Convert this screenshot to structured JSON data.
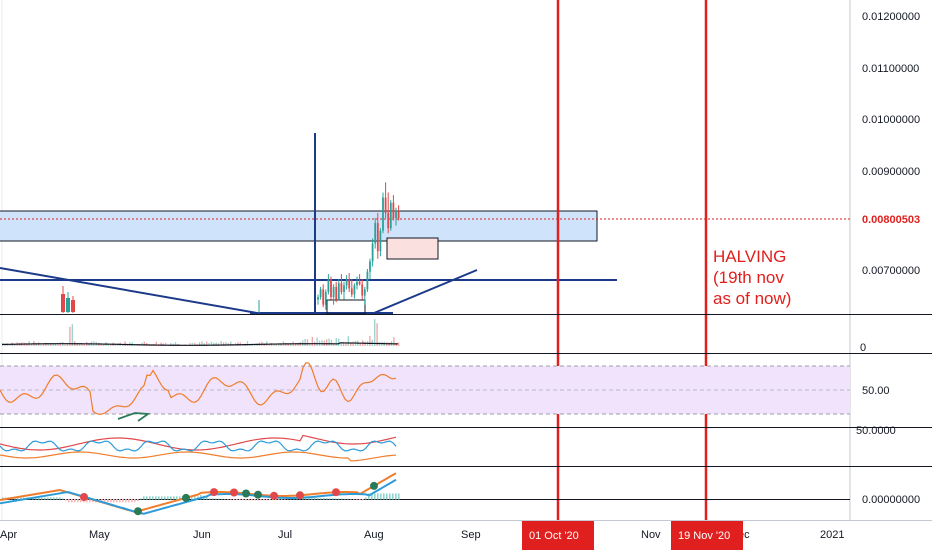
{
  "chart_data": {
    "type": "candlestick",
    "price_axis": {
      "ticks": [
        "0.01200000",
        "0.01100000",
        "0.01000000",
        "0.00900000",
        "0.00800503",
        "0.00700000"
      ],
      "range": [
        0.0059,
        0.0126
      ],
      "current_price": "0.00800503"
    },
    "time_axis": {
      "ticks": [
        "Apr",
        "May",
        "Jun",
        "Jul",
        "Aug",
        "Sep",
        "Nov",
        "ec",
        "2021"
      ],
      "markers": [
        "01 Oct '20",
        "19 Nov '20"
      ]
    },
    "annotation": {
      "lines": [
        "HALVING",
        "(19th nov",
        "as of now)"
      ]
    },
    "panes": [
      {
        "name": "volume",
        "ticks": [
          "0"
        ]
      },
      {
        "name": "rsi",
        "ticks": [
          "50.00"
        ],
        "band": [
          30,
          70
        ]
      },
      {
        "name": "dmi",
        "ticks": [
          "50.0000"
        ]
      },
      {
        "name": "macd",
        "ticks": [
          "0.00000000"
        ]
      }
    ],
    "ohlc": [
      [
        0.0064,
        0.0065,
        0.0063,
        0.00645
      ],
      [
        0.00645,
        0.00665,
        0.0064,
        0.0066
      ],
      [
        0.0066,
        0.0067,
        0.00625,
        0.0063
      ],
      [
        0.0063,
        0.0066,
        0.0062,
        0.00655
      ],
      [
        0.00655,
        0.0069,
        0.0065,
        0.0068
      ],
      [
        0.0068,
        0.00685,
        0.0064,
        0.00645
      ],
      [
        0.00645,
        0.0067,
        0.0063,
        0.00665
      ],
      [
        0.00665,
        0.00675,
        0.00635,
        0.0064
      ],
      [
        0.0064,
        0.0068,
        0.00638,
        0.00672
      ],
      [
        0.00672,
        0.0069,
        0.0065,
        0.00655
      ],
      [
        0.00655,
        0.00675,
        0.0064,
        0.00668
      ],
      [
        0.00668,
        0.00688,
        0.0066,
        0.0068
      ],
      [
        0.0068,
        0.00692,
        0.00655,
        0.00662
      ],
      [
        0.00662,
        0.0068,
        0.00645,
        0.0065
      ],
      [
        0.0065,
        0.00672,
        0.00642,
        0.00668
      ],
      [
        0.00668,
        0.00685,
        0.0066,
        0.00675
      ],
      [
        0.00675,
        0.0069,
        0.00668,
        0.0067
      ],
      [
        0.0067,
        0.0068,
        0.0064,
        0.00648
      ],
      [
        0.00648,
        0.00665,
        0.0063,
        0.0066
      ],
      [
        0.0066,
        0.007,
        0.00655,
        0.00695
      ],
      [
        0.00695,
        0.0072,
        0.0068,
        0.00715
      ],
      [
        0.00715,
        0.0076,
        0.00705,
        0.0075
      ],
      [
        0.0075,
        0.008,
        0.0074,
        0.0079
      ],
      [
        0.0079,
        0.0081,
        0.0072,
        0.00735
      ],
      [
        0.00735,
        0.0078,
        0.00725,
        0.00775
      ],
      [
        0.00775,
        0.0085,
        0.0077,
        0.0084
      ],
      [
        0.0084,
        0.0087,
        0.008,
        0.0081
      ],
      [
        0.0081,
        0.0085,
        0.0077,
        0.0078
      ],
      [
        0.0078,
        0.00835,
        0.00775,
        0.0083
      ],
      [
        0.0083,
        0.00845,
        0.00795,
        0.008
      ],
      [
        0.008,
        0.0082,
        0.00785,
        0.00815
      ],
      [
        0.00815,
        0.00825,
        0.00795,
        0.008
      ]
    ]
  }
}
